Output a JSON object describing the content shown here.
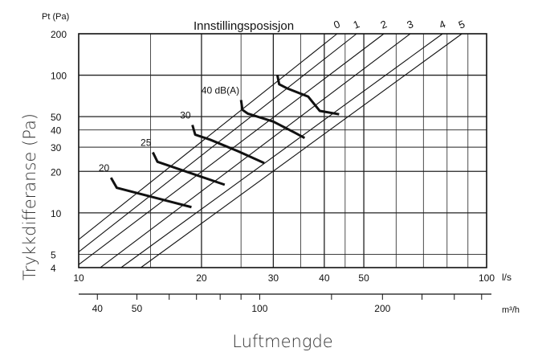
{
  "chart_data": {
    "type": "line",
    "title": "Innstillingsposisjon",
    "y_axis": {
      "label": "Trykkdifferanse (Pa)",
      "corner_label": "Pt (Pa)",
      "scale": "log",
      "range": [
        4,
        200
      ],
      "ticks": [
        4,
        5,
        10,
        20,
        30,
        40,
        50,
        100,
        200
      ]
    },
    "x_axis": {
      "label": "Luftmengde",
      "unit": "l/s",
      "scale": "log",
      "range": [
        10,
        100
      ],
      "ticks": [
        10,
        20,
        30,
        40,
        50,
        100
      ]
    },
    "x_axis_secondary": {
      "unit": "m³/h",
      "ticks": [
        40,
        50,
        100,
        200
      ]
    },
    "series": [
      {
        "name": "0",
        "x": [
          10,
          43
        ],
        "y": [
          6.4,
          200
        ]
      },
      {
        "name": "1",
        "x": [
          10,
          48
        ],
        "y": [
          5.2,
          200
        ]
      },
      {
        "name": "2",
        "x": [
          10,
          56
        ],
        "y": [
          4.2,
          200
        ]
      },
      {
        "name": "3",
        "x": [
          11.3,
          65
        ],
        "y": [
          4,
          200
        ]
      },
      {
        "name": "4",
        "x": [
          12.7,
          78
        ],
        "y": [
          4,
          200
        ]
      },
      {
        "name": "5",
        "x": [
          14.2,
          87
        ],
        "y": [
          4,
          200
        ]
      }
    ],
    "sound_curves": [
      {
        "label": "20",
        "x": [
          12,
          12.4,
          18.9
        ],
        "y": [
          18,
          15.2,
          11
        ]
      },
      {
        "label": "25",
        "x": [
          15.2,
          15.6,
          22.8
        ],
        "y": [
          27.5,
          23.5,
          16
        ]
      },
      {
        "label": "30",
        "x": [
          19,
          19.3,
          21,
          24.6,
          28.5
        ],
        "y": [
          43.5,
          37,
          34,
          28,
          23
        ]
      },
      {
        "label": "40 dB(A)",
        "x": [
          25,
          25.2,
          26,
          30,
          34,
          35.8
        ],
        "y": [
          66,
          56,
          52.5,
          46,
          38,
          35
        ]
      },
      {
        "label": "",
        "x": [
          30.7,
          31,
          32.5,
          36.5,
          39,
          43.5
        ],
        "y": [
          100,
          86,
          80,
          70,
          55,
          52
        ]
      }
    ]
  }
}
